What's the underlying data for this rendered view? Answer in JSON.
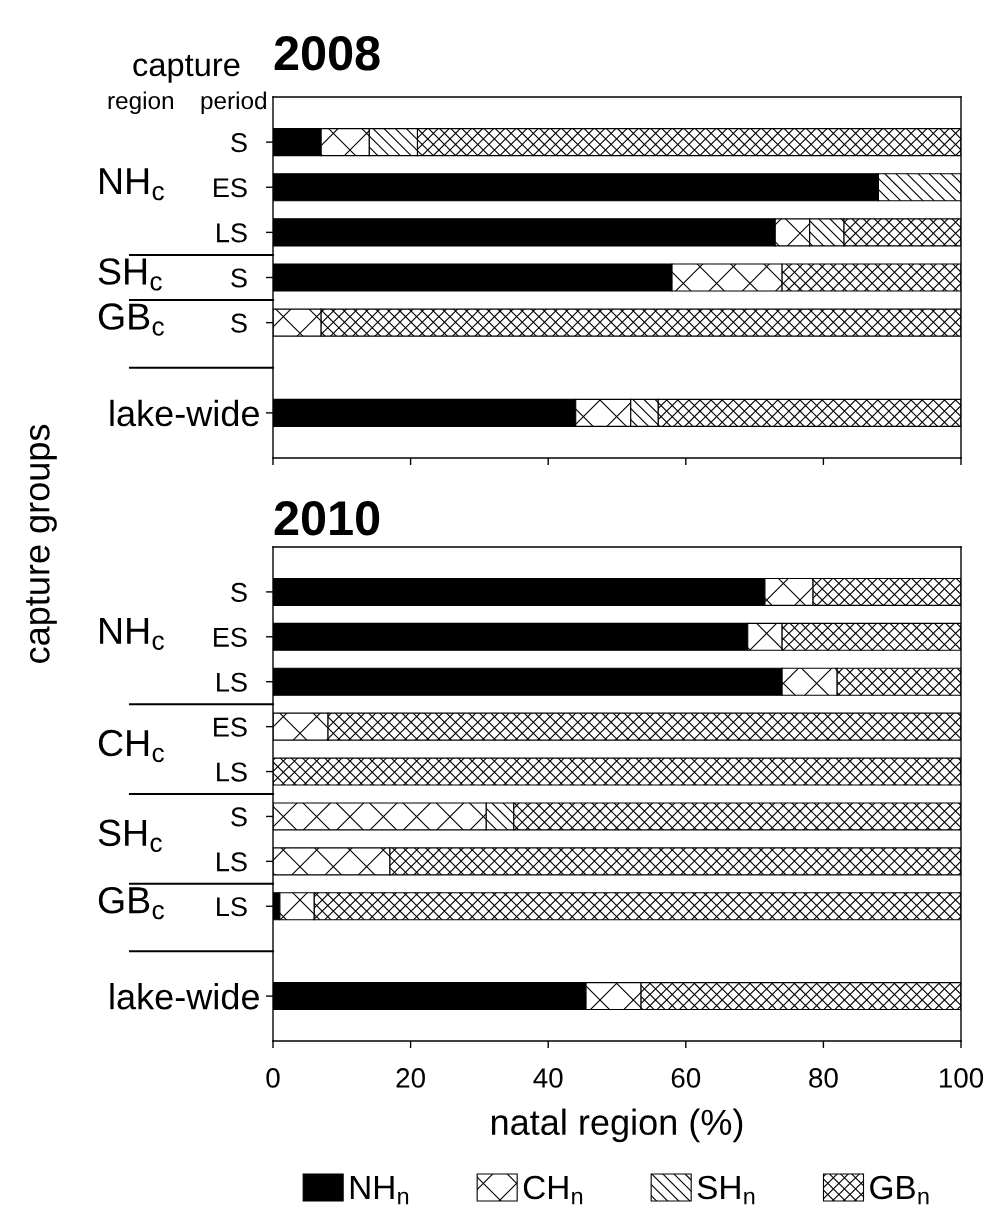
{
  "chart_data": [
    {
      "type": "bar",
      "orientation": "horizontal",
      "stacked": true,
      "title": "2008",
      "ylabel": "capture groups",
      "annotations": [
        "capture",
        "region",
        "period",
        "NH$_{c}$",
        "SH$_{c}$",
        "GB$_{c}$"
      ],
      "categories": [
        "S",
        "ES",
        "LS",
        "S",
        "S",
        null,
        "lake-wide"
      ],
      "series": [
        {
          "color": "#000000",
          "values": [
            7,
            88,
            73,
            58,
            0,
            null,
            44
          ]
        },
        {
          "color": "#000000",
          "values": [
            7,
            0,
            5,
            16,
            7,
            null,
            8
          ]
        },
        {
          "color": "#000000",
          "values": [
            7,
            12,
            5,
            0,
            0,
            null,
            4
          ]
        },
        {
          "color": "#000000",
          "values": [
            79,
            0,
            17,
            26,
            93,
            null,
            44
          ]
        }
      ],
      "xlim": [
        0,
        100
      ],
      "xticks": [
        0,
        20,
        40,
        60,
        80,
        100
      ],
      "tick_labels": "y"
    },
    {
      "type": "bar",
      "orientation": "horizontal",
      "stacked": true,
      "title": "2010",
      "xlabel": "natal region (%)",
      "annotations": [
        "NH$_{c}$",
        "CH$_{c}$",
        "SH$_{c}$",
        "GB$_{c}$"
      ],
      "categories": [
        "S",
        "ES",
        "LS",
        "ES",
        "LS",
        "S",
        "LS",
        "LS",
        null,
        "lake-wide"
      ],
      "series": [
        {
          "name": "NH$_{n}$",
          "color": "#000000",
          "values": [
            71.5,
            69,
            74,
            0,
            0,
            0,
            0,
            1,
            null,
            45.5
          ]
        },
        {
          "name": "CH$_{n}$",
          "color": "#000000",
          "values": [
            7,
            5,
            8,
            8,
            0,
            31,
            17,
            5,
            null,
            8
          ]
        },
        {
          "name": "SH$_{n}$",
          "color": "#000000",
          "values": [
            0,
            0,
            0,
            0,
            0,
            4,
            0,
            0,
            null,
            0
          ]
        },
        {
          "name": "GB$_{n}$",
          "color": "#000000",
          "values": [
            21.5,
            26,
            18,
            92,
            100,
            65,
            83,
            94,
            null,
            46.5
          ]
        }
      ],
      "xlim": [
        0,
        100
      ],
      "xticks": [
        0,
        20,
        40,
        60,
        80,
        100
      ],
      "legend": "bottom"
    }
  ]
}
